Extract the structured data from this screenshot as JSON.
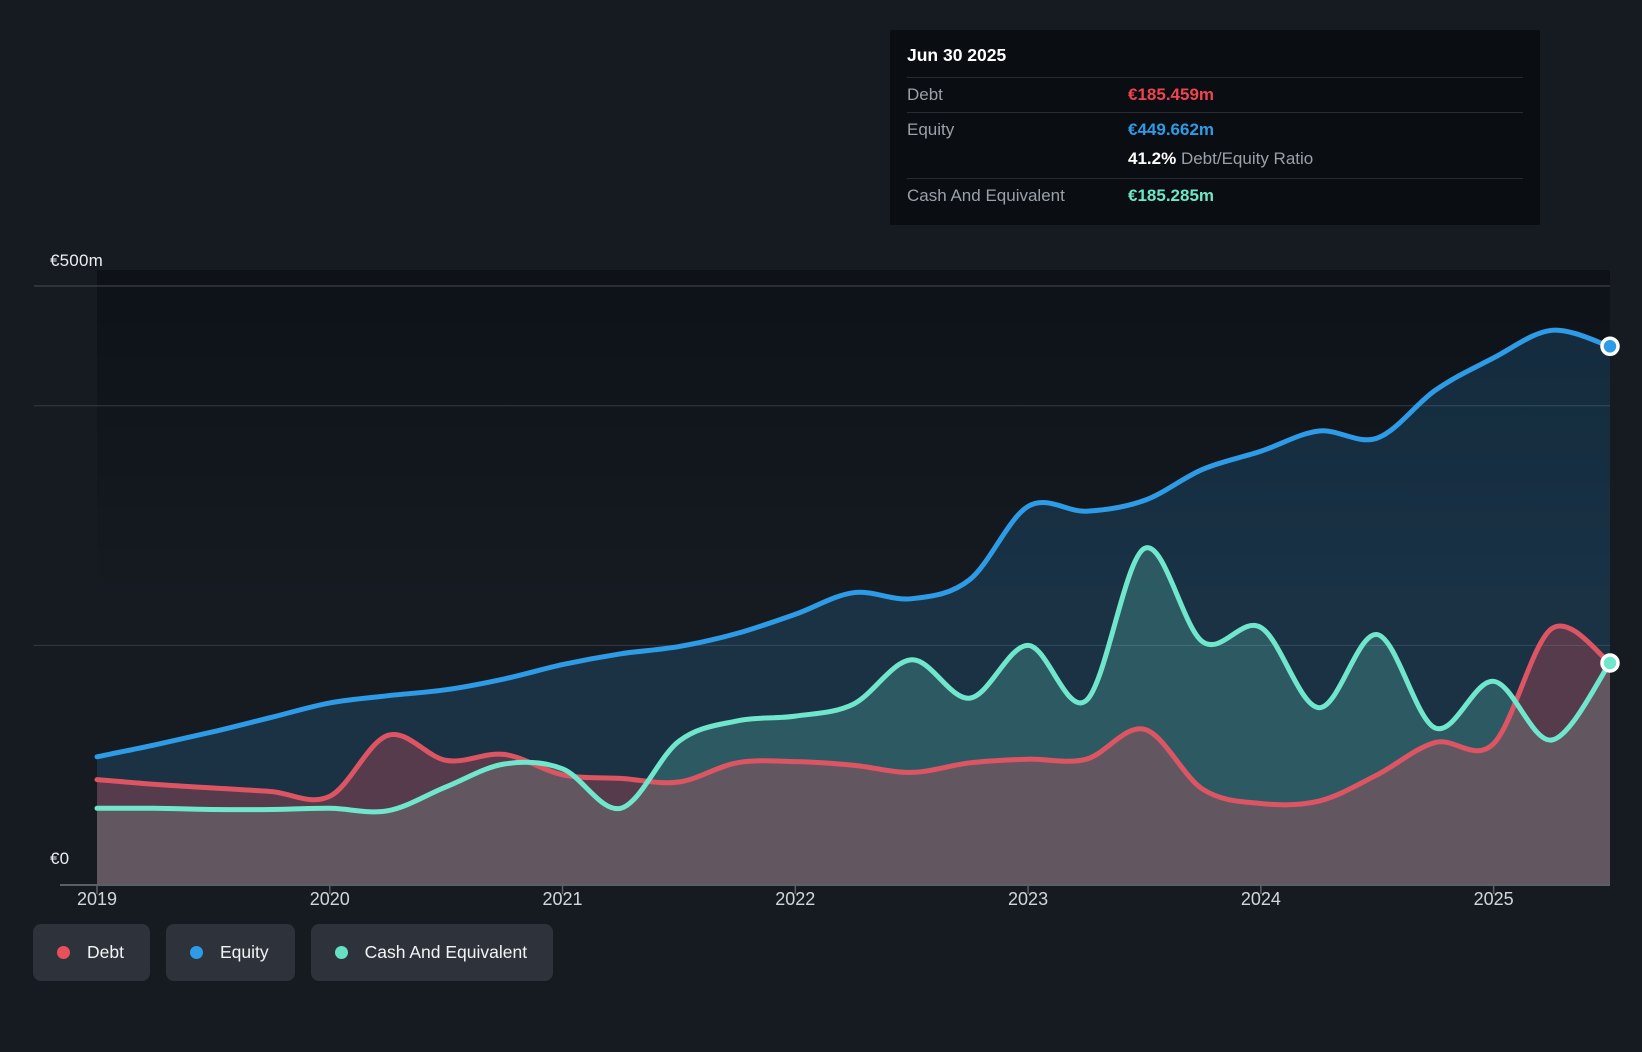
{
  "y_axis": {
    "top_label": "€500m",
    "zero_label": "€0"
  },
  "tooltip": {
    "date": "Jun 30 2025",
    "rows": [
      {
        "label": "Debt",
        "value": "€185.459m",
        "color": "#ef4450"
      },
      {
        "label": "Equity",
        "value": "€449.662m",
        "color": "#2e9be6"
      },
      {
        "label": "Cash And Equivalent",
        "value": "€185.285m",
        "color": "#6ee6c9"
      }
    ],
    "ratio_value": "41.2%",
    "ratio_label": "Debt/Equity Ratio"
  },
  "legend": {
    "items": [
      {
        "label": "Debt",
        "color": "#e8505b"
      },
      {
        "label": "Equity",
        "color": "#2e9be6"
      },
      {
        "label": "Cash And Equivalent",
        "color": "#67dfc2"
      }
    ]
  },
  "chart_data": {
    "type": "area",
    "title": "",
    "xlabel": "",
    "ylabel": "€m",
    "ylim": [
      0,
      500
    ],
    "y_gridlines": [
      500,
      400,
      200
    ],
    "x_ticks": [
      2019,
      2020,
      2021,
      2022,
      2023,
      2024,
      2025
    ],
    "x_range": [
      2019,
      2025.5
    ],
    "legend_position": "bottom",
    "grid": true,
    "x": [
      2019,
      2019.25,
      2019.5,
      2019.75,
      2020,
      2020.25,
      2020.5,
      2020.75,
      2021,
      2021.25,
      2021.5,
      2021.75,
      2022,
      2022.25,
      2022.5,
      2022.75,
      2023,
      2023.25,
      2023.5,
      2023.75,
      2024,
      2024.25,
      2024.5,
      2024.75,
      2025,
      2025.25,
      2025.5
    ],
    "series": [
      {
        "name": "Debt",
        "color": "#dd5562",
        "fill": "rgba(222,82,95,0.30)",
        "end_marker": false,
        "values": [
          88,
          84,
          81,
          78,
          74,
          125,
          104,
          109,
          92,
          89,
          86,
          102,
          103,
          100,
          94,
          102,
          105,
          105,
          130,
          80,
          68,
          70,
          92,
          119,
          118,
          214,
          185.459
        ]
      },
      {
        "name": "Equity",
        "color": "#2e9be6",
        "fill": "rgba(46,155,230,0.18)",
        "end_marker": true,
        "values": [
          107,
          117,
          128,
          140,
          152,
          158,
          163,
          172,
          184,
          193,
          199,
          210,
          226,
          244,
          239,
          255,
          316,
          312,
          321,
          347,
          362,
          379,
          373,
          413,
          440,
          463,
          449.662
        ]
      },
      {
        "name": "Cash And Equivalent",
        "color": "#70e6cc",
        "fill": "rgba(112,230,204,0.22)",
        "end_marker": true,
        "values": [
          64,
          64,
          63,
          63,
          64,
          62,
          82,
          101,
          97,
          64,
          120,
          137,
          141,
          151,
          188,
          156,
          200,
          154,
          281,
          203,
          215,
          148,
          209,
          131,
          170,
          121,
          185.285
        ]
      }
    ]
  }
}
